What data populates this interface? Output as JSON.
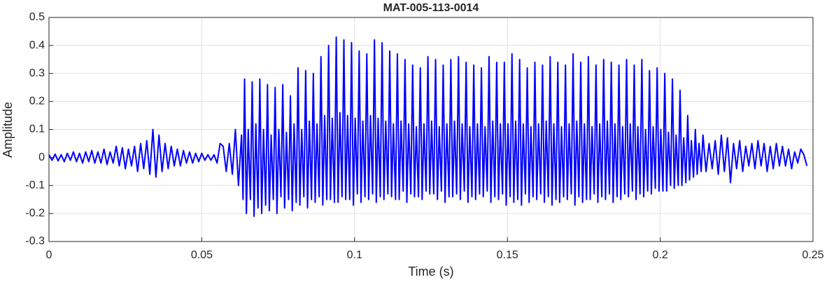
{
  "chart_data": {
    "type": "line",
    "title": "MAT-005-113-0014",
    "x_label": "Time (s)",
    "y_label": "Amplitude",
    "xlim": [
      0,
      0.25
    ],
    "ylim": [
      -0.3,
      0.5
    ],
    "xticks": [
      0,
      0.05,
      0.1,
      0.15,
      0.2,
      0.25
    ],
    "yticks": [
      -0.3,
      -0.2,
      -0.1,
      0,
      0.1,
      0.2,
      0.3,
      0.4,
      0.5
    ],
    "grid": true,
    "series": [
      {
        "color": "#0000ff",
        "x": [
          0,
          0.001,
          0.002,
          0.003,
          0.004,
          0.005,
          0.006,
          0.007,
          0.008,
          0.009,
          0.01,
          0.011,
          0.012,
          0.013,
          0.014,
          0.015,
          0.016,
          0.017,
          0.018,
          0.019,
          0.02,
          0.021,
          0.022,
          0.023,
          0.024,
          0.025,
          0.026,
          0.027,
          0.028,
          0.029,
          0.03,
          0.031,
          0.032,
          0.033,
          0.034,
          0.035,
          0.036,
          0.037,
          0.038,
          0.039,
          0.04,
          0.041,
          0.042,
          0.043,
          0.044,
          0.045,
          0.046,
          0.047,
          0.048,
          0.049,
          0.05,
          0.051,
          0.052,
          0.053,
          0.054,
          0.055,
          0.056,
          0.057,
          0.058,
          0.059,
          0.06,
          0.061,
          0.062,
          0.063,
          0.0635,
          0.064,
          0.0646,
          0.0652,
          0.0659,
          0.0665,
          0.0671,
          0.0677,
          0.0684,
          0.069,
          0.0696,
          0.0702,
          0.0709,
          0.0715,
          0.0721,
          0.0727,
          0.0734,
          0.074,
          0.0746,
          0.0752,
          0.0759,
          0.0765,
          0.0771,
          0.0777,
          0.0784,
          0.079,
          0.0796,
          0.0802,
          0.0809,
          0.0815,
          0.0821,
          0.0827,
          0.0834,
          0.084,
          0.0846,
          0.0852,
          0.0859,
          0.0865,
          0.0871,
          0.0877,
          0.0884,
          0.089,
          0.0896,
          0.0902,
          0.0909,
          0.0915,
          0.0921,
          0.0927,
          0.0934,
          0.094,
          0.0946,
          0.0952,
          0.0959,
          0.0965,
          0.0971,
          0.0977,
          0.0984,
          0.099,
          0.0996,
          0.1002,
          0.1009,
          0.1015,
          0.1021,
          0.1027,
          0.1034,
          0.104,
          0.1046,
          0.1052,
          0.1059,
          0.1065,
          0.1071,
          0.1077,
          0.1084,
          0.109,
          0.1096,
          0.1102,
          0.1109,
          0.1115,
          0.1121,
          0.1127,
          0.1134,
          0.114,
          0.1146,
          0.1152,
          0.1159,
          0.1165,
          0.1171,
          0.1177,
          0.1184,
          0.119,
          0.1196,
          0.1202,
          0.1209,
          0.1215,
          0.1221,
          0.1227,
          0.1234,
          0.124,
          0.1246,
          0.1252,
          0.1259,
          0.1265,
          0.1271,
          0.1277,
          0.1284,
          0.129,
          0.1296,
          0.1302,
          0.1309,
          0.1315,
          0.1321,
          0.1327,
          0.1334,
          0.134,
          0.1346,
          0.1352,
          0.1359,
          0.1365,
          0.1371,
          0.1377,
          0.1384,
          0.139,
          0.1396,
          0.1402,
          0.1409,
          0.1415,
          0.1421,
          0.1427,
          0.1434,
          0.144,
          0.1446,
          0.1452,
          0.1459,
          0.1465,
          0.1471,
          0.1477,
          0.1484,
          0.149,
          0.1496,
          0.1502,
          0.1509,
          0.1515,
          0.1521,
          0.1527,
          0.1534,
          0.154,
          0.1546,
          0.1552,
          0.1559,
          0.1565,
          0.1571,
          0.1577,
          0.1584,
          0.159,
          0.1596,
          0.1602,
          0.1609,
          0.1615,
          0.1621,
          0.1627,
          0.1634,
          0.164,
          0.1646,
          0.1652,
          0.1659,
          0.1665,
          0.1671,
          0.1677,
          0.1684,
          0.169,
          0.1696,
          0.1702,
          0.1709,
          0.1715,
          0.1721,
          0.1727,
          0.1734,
          0.174,
          0.1746,
          0.1752,
          0.1759,
          0.1765,
          0.1771,
          0.1777,
          0.1784,
          0.179,
          0.1796,
          0.1802,
          0.1809,
          0.1815,
          0.1821,
          0.1827,
          0.1834,
          0.184,
          0.1846,
          0.1852,
          0.1859,
          0.1865,
          0.1871,
          0.1877,
          0.1884,
          0.189,
          0.1896,
          0.1902,
          0.1909,
          0.1915,
          0.1921,
          0.1927,
          0.1934,
          0.194,
          0.1946,
          0.1952,
          0.1959,
          0.1965,
          0.1971,
          0.1977,
          0.1984,
          0.199,
          0.1996,
          0.2002,
          0.2009,
          0.2015,
          0.2021,
          0.2027,
          0.2034,
          0.204,
          0.2046,
          0.2052,
          0.2059,
          0.2065,
          0.2071,
          0.2077,
          0.2084,
          0.209,
          0.2096,
          0.2102,
          0.2109,
          0.2115,
          0.2121,
          0.2127,
          0.2134,
          0.214,
          0.215,
          0.216,
          0.217,
          0.218,
          0.219,
          0.22,
          0.221,
          0.222,
          0.223,
          0.224,
          0.225,
          0.226,
          0.227,
          0.228,
          0.229,
          0.23,
          0.231,
          0.232,
          0.233,
          0.234,
          0.235,
          0.236,
          0.237,
          0.238,
          0.239,
          0.24,
          0.241,
          0.242,
          0.243,
          0.244,
          0.245,
          0.246,
          0.247,
          0.248
        ],
        "values": [
          0.01,
          -0.01,
          0.012,
          -0.012,
          0.01,
          -0.015,
          0.015,
          -0.01,
          0.02,
          -0.015,
          0.015,
          -0.02,
          0.02,
          -0.015,
          0.025,
          -0.02,
          0.02,
          -0.02,
          0.03,
          -0.025,
          0.02,
          -0.02,
          0.04,
          -0.03,
          0.035,
          -0.04,
          0.03,
          -0.03,
          0.04,
          -0.05,
          0.05,
          -0.04,
          0.06,
          -0.06,
          0.1,
          -0.07,
          0.08,
          -0.05,
          0.05,
          -0.04,
          0.04,
          -0.03,
          0.03,
          -0.03,
          0.025,
          -0.02,
          0.02,
          -0.02,
          0.015,
          -0.015,
          0.015,
          -0.01,
          0.01,
          -0.01,
          0.01,
          -0.02,
          0.05,
          0.04,
          -0.05,
          0.05,
          -0.06,
          0.1,
          -0.1,
          0.08,
          -0.15,
          0.28,
          -0.2,
          0.1,
          -0.15,
          0.27,
          -0.21,
          0.12,
          -0.18,
          0.28,
          -0.2,
          0.1,
          -0.17,
          0.26,
          -0.19,
          0.08,
          -0.15,
          0.25,
          -0.2,
          0.1,
          -0.14,
          0.26,
          -0.18,
          0.09,
          -0.15,
          0.22,
          -0.19,
          0.12,
          -0.16,
          0.32,
          -0.17,
          0.1,
          -0.14,
          0.31,
          -0.18,
          0.13,
          -0.15,
          0.3,
          -0.16,
          0.12,
          -0.14,
          0.36,
          -0.17,
          0.15,
          -0.15,
          0.4,
          -0.15,
          0.14,
          -0.16,
          0.43,
          -0.16,
          0.16,
          -0.14,
          0.42,
          -0.15,
          0.15,
          -0.15,
          0.41,
          -0.17,
          0.14,
          -0.13,
          0.38,
          -0.16,
          0.13,
          -0.14,
          0.37,
          -0.15,
          0.15,
          -0.13,
          0.42,
          -0.16,
          0.14,
          -0.14,
          0.41,
          -0.15,
          0.13,
          -0.13,
          0.38,
          -0.14,
          0.12,
          -0.15,
          0.37,
          -0.15,
          0.13,
          -0.12,
          0.35,
          -0.16,
          0.12,
          -0.13,
          0.33,
          -0.14,
          0.11,
          -0.14,
          0.32,
          -0.15,
          0.12,
          -0.12,
          0.36,
          -0.13,
          0.13,
          -0.13,
          0.35,
          -0.15,
          0.11,
          -0.12,
          0.33,
          -0.16,
          0.12,
          -0.14,
          0.35,
          -0.14,
          0.13,
          -0.13,
          0.36,
          -0.15,
          0.12,
          -0.12,
          0.34,
          -0.16,
          0.11,
          -0.14,
          0.33,
          -0.15,
          0.12,
          -0.13,
          0.32,
          -0.14,
          0.11,
          -0.12,
          0.36,
          -0.16,
          0.13,
          -0.14,
          0.34,
          -0.15,
          0.12,
          -0.13,
          0.34,
          -0.17,
          0.12,
          -0.14,
          0.37,
          -0.16,
          0.13,
          -0.15,
          0.35,
          -0.17,
          0.12,
          -0.13,
          0.32,
          -0.16,
          0.11,
          -0.14,
          0.34,
          -0.15,
          0.12,
          -0.13,
          0.33,
          -0.16,
          0.13,
          -0.14,
          0.36,
          -0.17,
          0.12,
          -0.15,
          0.34,
          -0.16,
          0.11,
          -0.14,
          0.33,
          -0.15,
          0.12,
          -0.13,
          0.37,
          -0.17,
          0.13,
          -0.14,
          0.34,
          -0.16,
          0.12,
          -0.15,
          0.36,
          -0.15,
          0.11,
          -0.13,
          0.33,
          -0.16,
          0.12,
          -0.14,
          0.35,
          -0.15,
          0.13,
          -0.13,
          0.34,
          -0.16,
          0.12,
          -0.14,
          0.33,
          -0.15,
          0.11,
          -0.13,
          0.35,
          -0.14,
          0.12,
          -0.12,
          0.33,
          -0.15,
          0.11,
          -0.13,
          0.35,
          -0.14,
          0.1,
          -0.12,
          0.31,
          -0.13,
          0.11,
          -0.11,
          0.32,
          -0.12,
          0.1,
          -0.12,
          0.3,
          -0.12,
          0.09,
          -0.1,
          0.28,
          -0.11,
          0.08,
          -0.1,
          0.24,
          -0.1,
          0.07,
          -0.09,
          0.15,
          -0.08,
          0.06,
          -0.07,
          0.1,
          -0.06,
          0.05,
          -0.05,
          0.08,
          -0.05,
          0.05,
          -0.04,
          0.06,
          -0.06,
          0.08,
          -0.05,
          0.07,
          -0.09,
          0.05,
          -0.04,
          0.06,
          -0.05,
          0.04,
          -0.03,
          0.05,
          -0.04,
          0.06,
          -0.03,
          0.05,
          -0.05,
          0.04,
          -0.04,
          0.05,
          -0.03,
          0.04,
          -0.03,
          0.03,
          -0.04,
          0.02,
          -0.02,
          0.03,
          0.01,
          -0.03
        ]
      }
    ]
  }
}
